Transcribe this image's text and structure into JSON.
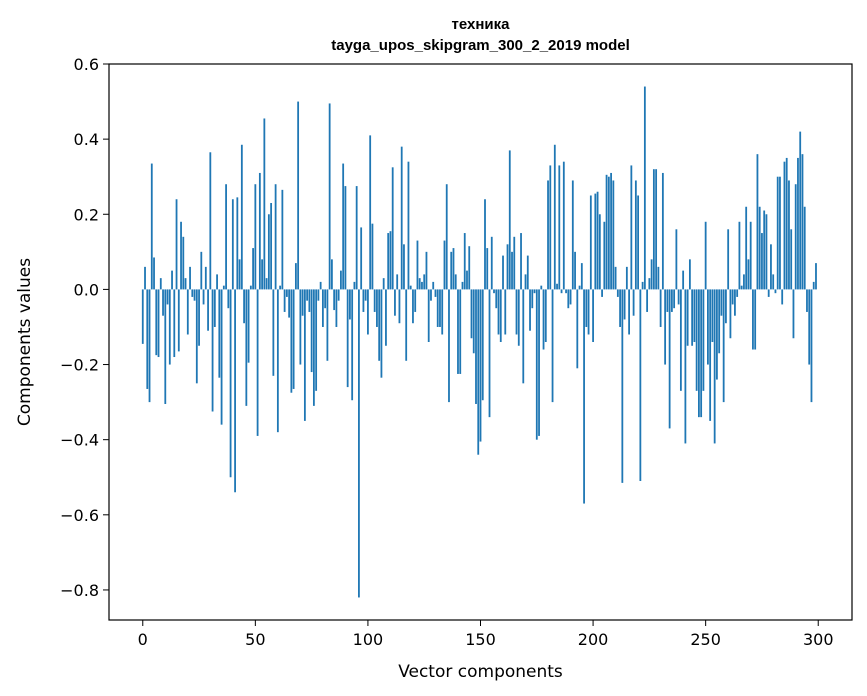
{
  "chart_data": {
    "type": "bar",
    "title": "техника",
    "subtitle": "tayga_upos_skipgram_300_2_2019 model",
    "xlabel": "Vector components",
    "ylabel": "Components values",
    "xlim": [
      -15,
      315
    ],
    "ylim": [
      -0.88,
      0.6
    ],
    "xticks": [
      0,
      50,
      100,
      150,
      200,
      250,
      300
    ],
    "yticks": [
      -0.8,
      -0.6,
      -0.4,
      -0.2,
      0.0,
      0.2,
      0.4,
      0.6
    ],
    "ytick_labels": [
      "−0.8",
      "−0.6",
      "−0.4",
      "−0.2",
      "0.0",
      "0.2",
      "0.4",
      "0.6"
    ],
    "xtick_labels": [
      "0",
      "50",
      "100",
      "150",
      "200",
      "250",
      "300"
    ],
    "bar_color": "#1f77b4",
    "x": [
      0,
      1,
      2,
      3,
      4,
      5,
      6,
      7,
      8,
      9,
      10,
      11,
      12,
      13,
      14,
      15,
      16,
      17,
      18,
      19,
      20,
      21,
      22,
      23,
      24,
      25,
      26,
      27,
      28,
      29,
      30,
      31,
      32,
      33,
      34,
      35,
      36,
      37,
      38,
      39,
      40,
      41,
      42,
      43,
      44,
      45,
      46,
      47,
      48,
      49,
      50,
      51,
      52,
      53,
      54,
      55,
      56,
      57,
      58,
      59,
      60,
      61,
      62,
      63,
      64,
      65,
      66,
      67,
      68,
      69,
      70,
      71,
      72,
      73,
      74,
      75,
      76,
      77,
      78,
      79,
      80,
      81,
      82,
      83,
      84,
      85,
      86,
      87,
      88,
      89,
      90,
      91,
      92,
      93,
      94,
      95,
      96,
      97,
      98,
      99,
      100,
      101,
      102,
      103,
      104,
      105,
      106,
      107,
      108,
      109,
      110,
      111,
      112,
      113,
      114,
      115,
      116,
      117,
      118,
      119,
      120,
      121,
      122,
      123,
      124,
      125,
      126,
      127,
      128,
      129,
      130,
      131,
      132,
      133,
      134,
      135,
      136,
      137,
      138,
      139,
      140,
      141,
      142,
      143,
      144,
      145,
      146,
      147,
      148,
      149,
      150,
      151,
      152,
      153,
      154,
      155,
      156,
      157,
      158,
      159,
      160,
      161,
      162,
      163,
      164,
      165,
      166,
      167,
      168,
      169,
      170,
      171,
      172,
      173,
      174,
      175,
      176,
      177,
      178,
      179,
      180,
      181,
      182,
      183,
      184,
      185,
      186,
      187,
      188,
      189,
      190,
      191,
      192,
      193,
      194,
      195,
      196,
      197,
      198,
      199,
      200,
      201,
      202,
      203,
      204,
      205,
      206,
      207,
      208,
      209,
      210,
      211,
      212,
      213,
      214,
      215,
      216,
      217,
      218,
      219,
      220,
      221,
      222,
      223,
      224,
      225,
      226,
      227,
      228,
      229,
      230,
      231,
      232,
      233,
      234,
      235,
      236,
      237,
      238,
      239,
      240,
      241,
      242,
      243,
      244,
      245,
      246,
      247,
      248,
      249,
      250,
      251,
      252,
      253,
      254,
      255,
      256,
      257,
      258,
      259,
      260,
      261,
      262,
      263,
      264,
      265,
      266,
      267,
      268,
      269,
      270,
      271,
      272,
      273,
      274,
      275,
      276,
      277,
      278,
      279,
      280,
      281,
      282,
      283,
      284,
      285,
      286,
      287,
      288,
      289,
      290,
      291,
      292,
      293,
      294,
      295,
      296,
      297,
      298,
      299
    ],
    "values": [
      -0.145,
      0.06,
      -0.265,
      -0.3,
      0.335,
      0.085,
      -0.175,
      -0.18,
      0.03,
      -0.07,
      -0.305,
      -0.04,
      -0.2,
      0.05,
      -0.18,
      0.24,
      -0.165,
      0.18,
      0.14,
      0.03,
      -0.12,
      0.06,
      -0.02,
      -0.03,
      -0.25,
      -0.15,
      0.1,
      -0.04,
      0.06,
      -0.11,
      0.365,
      -0.325,
      -0.1,
      0.04,
      -0.235,
      -0.36,
      0.01,
      0.28,
      -0.05,
      -0.5,
      0.24,
      -0.54,
      0.245,
      0.08,
      0.385,
      -0.09,
      -0.31,
      -0.195,
      0.01,
      0.11,
      0.28,
      -0.39,
      0.31,
      0.08,
      0.455,
      0.03,
      0.2,
      0.23,
      -0.23,
      0.28,
      -0.38,
      0.01,
      0.265,
      -0.06,
      -0.02,
      -0.075,
      -0.275,
      -0.265,
      0.07,
      0.5,
      -0.2,
      -0.07,
      -0.35,
      -0.03,
      -0.06,
      -0.22,
      -0.31,
      -0.27,
      -0.03,
      0.02,
      -0.1,
      -0.05,
      -0.19,
      0.495,
      0.08,
      -0.055,
      -0.1,
      -0.03,
      0.05,
      0.335,
      0.275,
      -0.26,
      -0.08,
      -0.295,
      0.02,
      0.275,
      -0.82,
      0.165,
      -0.06,
      -0.03,
      -0.12,
      0.41,
      0.175,
      -0.06,
      -0.1,
      -0.19,
      -0.235,
      0.03,
      -0.15,
      0.15,
      0.155,
      0.325,
      -0.07,
      0.04,
      -0.09,
      0.38,
      0.12,
      -0.19,
      0.34,
      0.01,
      -0.09,
      -0.06,
      0.13,
      0.03,
      0.02,
      0.04,
      0.1,
      -0.14,
      -0.03,
      0.02,
      -0.02,
      -0.1,
      -0.1,
      -0.12,
      0.13,
      0.28,
      -0.3,
      0.1,
      0.11,
      0.04,
      -0.225,
      -0.225,
      0.02,
      0.15,
      0.05,
      0.115,
      -0.13,
      -0.17,
      -0.305,
      -0.44,
      -0.405,
      -0.295,
      0.24,
      0.11,
      -0.34,
      0.14,
      -0.01,
      -0.05,
      -0.12,
      -0.14,
      0.09,
      -0.12,
      0.12,
      0.37,
      0.1,
      0.14,
      -0.12,
      -0.15,
      0.15,
      -0.25,
      0.04,
      0.09,
      -0.11,
      -0.05,
      -0.01,
      -0.4,
      -0.39,
      0.01,
      -0.16,
      -0.14,
      0.29,
      0.33,
      -0.3,
      0.385,
      0.015,
      0.33,
      -0.01,
      0.34,
      -0.01,
      -0.05,
      -0.04,
      0.29,
      0.1,
      -0.21,
      0.01,
      0.07,
      -0.57,
      -0.1,
      -0.12,
      0.25,
      -0.14,
      0.255,
      0.26,
      0.2,
      -0.02,
      0.18,
      0.305,
      0.3,
      0.31,
      0.29,
      0.06,
      -0.02,
      -0.1,
      -0.515,
      -0.08,
      0.06,
      -0.12,
      0.33,
      -0.07,
      0.29,
      0.25,
      -0.51,
      0.02,
      0.54,
      -0.06,
      0.03,
      0.08,
      0.32,
      0.32,
      0.06,
      -0.1,
      0.31,
      -0.2,
      -0.06,
      -0.37,
      -0.06,
      -0.05,
      0.16,
      -0.04,
      -0.27,
      0.05,
      -0.41,
      -0.15,
      0.08,
      -0.15,
      -0.14,
      -0.27,
      -0.34,
      -0.34,
      -0.27,
      0.18,
      -0.2,
      -0.35,
      -0.14,
      -0.41,
      -0.24,
      -0.17,
      -0.07,
      -0.3,
      -0.09,
      0.16,
      -0.13,
      -0.04,
      -0.07,
      -0.02,
      0.18,
      0.01,
      0.04,
      0.22,
      0.08,
      0.18,
      -0.16,
      -0.16,
      0.36,
      0.22,
      0.15,
      0.21,
      0.2,
      -0.02,
      0.12,
      0.04,
      -0.01,
      0.3,
      0.3,
      -0.04,
      0.34,
      0.35,
      0.29,
      0.16,
      -0.13,
      0.28,
      0.35,
      0.42,
      0.36,
      0.22,
      -0.06,
      -0.2,
      -0.3,
      0.02,
      0.07
    ],
    "grid": false,
    "legend": "none"
  }
}
